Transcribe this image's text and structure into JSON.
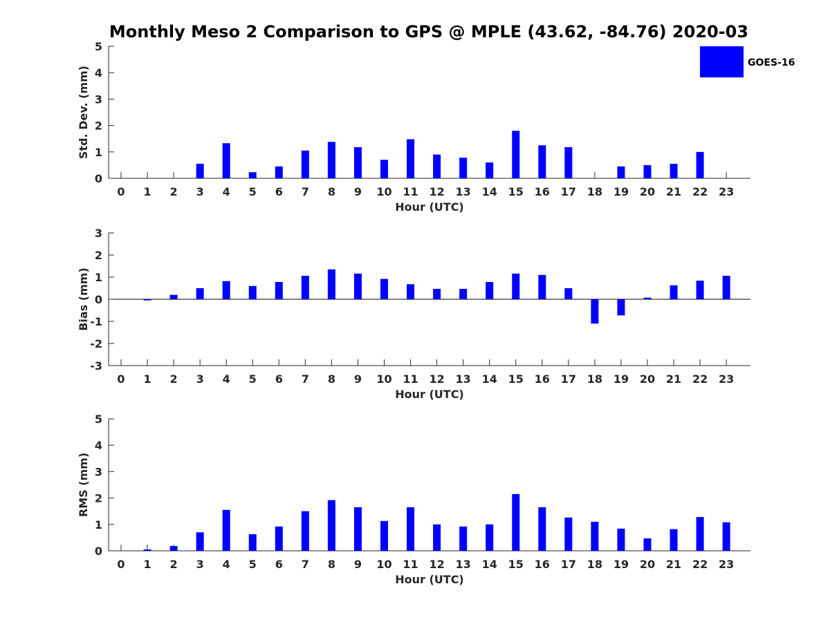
{
  "title": "Monthly Meso 2 Comparison to GPS @ MPLE (43.62, -84.76) 2020-03",
  "legend": {
    "label": "GOES-16",
    "color": "#0000ff",
    "placement": "top-right"
  },
  "chart_data": [
    {
      "type": "bar",
      "xlabel": "Hour (UTC)",
      "ylabel": "Std. Dev. (mm)",
      "ylim": [
        0,
        5
      ],
      "yticks": [
        0,
        1,
        2,
        3,
        4,
        5
      ],
      "categories": [
        "0",
        "1",
        "2",
        "3",
        "4",
        "5",
        "6",
        "7",
        "8",
        "9",
        "10",
        "11",
        "12",
        "13",
        "14",
        "15",
        "16",
        "17",
        "18",
        "19",
        "20",
        "21",
        "22",
        "23"
      ],
      "series": [
        {
          "name": "GOES-16",
          "values": [
            0,
            0,
            0,
            0.55,
            1.33,
            0.23,
            0.45,
            1.05,
            1.38,
            1.18,
            0.7,
            1.48,
            0.9,
            0.78,
            0.6,
            1.8,
            1.25,
            1.18,
            0,
            0.45,
            0.5,
            0.55,
            1.0,
            0
          ]
        }
      ]
    },
    {
      "type": "bar",
      "xlabel": "Hour (UTC)",
      "ylabel": "Bias (mm)",
      "ylim": [
        -3,
        3
      ],
      "yticks": [
        -3,
        -2,
        -1,
        0,
        1,
        2,
        3
      ],
      "categories": [
        "0",
        "1",
        "2",
        "3",
        "4",
        "5",
        "6",
        "7",
        "8",
        "9",
        "10",
        "11",
        "12",
        "13",
        "14",
        "15",
        "16",
        "17",
        "18",
        "19",
        "20",
        "21",
        "22",
        "23"
      ],
      "series": [
        {
          "name": "GOES-16",
          "values": [
            0,
            -0.05,
            0.2,
            0.5,
            0.82,
            0.6,
            0.78,
            1.06,
            1.35,
            1.16,
            0.92,
            0.68,
            0.47,
            0.47,
            0.78,
            1.16,
            1.1,
            0.5,
            -1.1,
            -0.73,
            0.07,
            0.63,
            0.84,
            1.06
          ]
        }
      ]
    },
    {
      "type": "bar",
      "xlabel": "Hour (UTC)",
      "ylabel": "RMS (mm)",
      "ylim": [
        0,
        5
      ],
      "yticks": [
        0,
        1,
        2,
        3,
        4,
        5
      ],
      "categories": [
        "0",
        "1",
        "2",
        "3",
        "4",
        "5",
        "6",
        "7",
        "8",
        "9",
        "10",
        "11",
        "12",
        "13",
        "14",
        "15",
        "16",
        "17",
        "18",
        "19",
        "20",
        "21",
        "22",
        "23"
      ],
      "series": [
        {
          "name": "GOES-16",
          "values": [
            0,
            0.05,
            0.18,
            0.7,
            1.55,
            0.63,
            0.92,
            1.5,
            1.92,
            1.65,
            1.13,
            1.65,
            1.0,
            0.92,
            1.0,
            2.15,
            1.65,
            1.26,
            1.1,
            0.84,
            0.47,
            0.82,
            1.28,
            1.08
          ]
        }
      ]
    }
  ]
}
